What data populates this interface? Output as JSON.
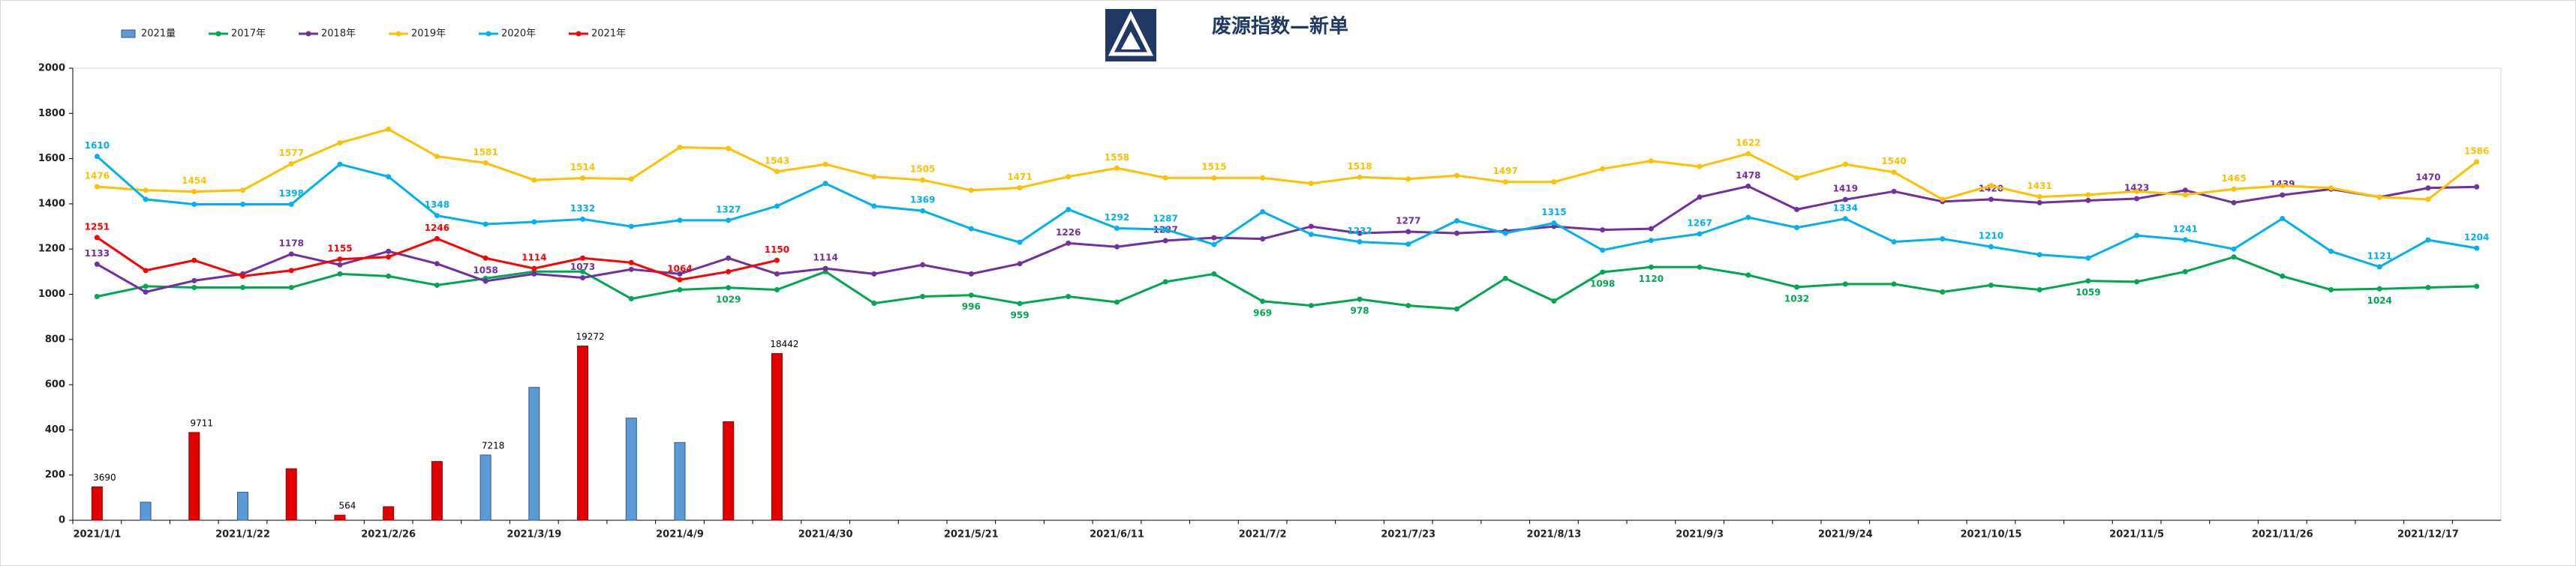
{
  "chart_data": {
    "type": "bar-line",
    "title": "废源指数—新单",
    "categories": [
      "2021/1/1",
      null,
      null,
      "2021/1/22",
      null,
      null,
      "2021/2/26",
      null,
      null,
      "2021/3/19",
      null,
      null,
      "2021/4/9",
      null,
      null,
      "2021/4/30",
      null,
      null,
      "2021/5/21",
      null,
      null,
      "2021/6/11",
      null,
      null,
      "2021/7/2",
      null,
      null,
      "2021/7/23",
      null,
      null,
      "2021/8/13",
      null,
      null,
      "2021/9/3",
      null,
      null,
      "2021/9/24",
      null,
      null,
      "2021/10/15",
      null,
      null,
      "2021/11/5",
      null,
      null,
      "2021/11/26",
      null,
      null,
      "2021/12/17",
      null
    ],
    "ylim": [
      0,
      2000
    ],
    "yticks": [
      0,
      200,
      400,
      600,
      800,
      1000,
      1200,
      1400,
      1600,
      1800,
      2000
    ],
    "y2lim": [
      0,
      50000
    ],
    "grid": false,
    "series": [
      {
        "name": "2021量",
        "type": "bar",
        "axis": "y2",
        "color": "#5b9bd5",
        "colors": [
          "#e00000",
          "#5b9bd5",
          "#e00000",
          "#5b9bd5",
          "#e00000",
          "#e00000",
          "#e00000",
          "#e00000",
          "#5b9bd5",
          "#5b9bd5",
          "#e00000",
          "#5b9bd5",
          "#5b9bd5",
          "#e00000",
          "#e00000",
          null,
          null,
          null,
          null,
          null,
          null,
          null,
          null,
          null,
          null,
          null,
          null,
          null,
          null,
          null,
          null,
          null,
          null,
          null,
          null,
          null,
          null,
          null,
          null,
          null,
          null,
          null,
          null,
          null,
          null,
          null,
          null,
          null,
          null,
          null
        ],
        "values": [
          3690,
          2000,
          9711,
          3100,
          5700,
          564,
          1500,
          6500,
          7218,
          14700,
          19272,
          11300,
          8600,
          10900,
          18442,
          null,
          null,
          null,
          null,
          null,
          null,
          null,
          null,
          null,
          null,
          null,
          null,
          null,
          null,
          null,
          null,
          null,
          null,
          null,
          null,
          null,
          null,
          null,
          null,
          null,
          null,
          null,
          null,
          null,
          null,
          null,
          null,
          null,
          null,
          null
        ],
        "value_labels": [
          "3690",
          null,
          "9711",
          null,
          null,
          "564",
          null,
          null,
          "7218",
          null,
          "19272",
          null,
          null,
          null,
          "18442",
          null,
          null,
          null,
          null,
          null,
          null,
          null,
          null,
          null,
          null,
          null,
          null,
          null,
          null,
          null,
          null,
          null,
          null,
          null,
          null,
          null,
          null,
          null,
          null,
          null,
          null,
          null,
          null,
          null,
          null,
          null,
          null,
          null,
          null,
          null
        ]
      },
      {
        "name": "2017年",
        "type": "line",
        "color": "#00a650",
        "values": [
          990,
          1035,
          1030,
          1030,
          1030,
          1090,
          1080,
          1040,
          1070,
          1100,
          1100,
          980,
          1020,
          1029,
          1020,
          1100,
          960,
          990,
          996,
          959,
          990,
          965,
          1055,
          1090,
          969,
          950,
          978,
          950,
          935,
          1070,
          970,
          1098,
          1120,
          1120,
          1085,
          1032,
          1045,
          1045,
          1010,
          1040,
          1020,
          1059,
          1055,
          1100,
          1165,
          1080,
          1020,
          1024,
          1030,
          1035
        ],
        "value_labels": [
          null,
          null,
          null,
          null,
          null,
          null,
          null,
          null,
          null,
          null,
          null,
          null,
          null,
          "1029",
          null,
          null,
          null,
          null,
          "996",
          "959",
          null,
          null,
          null,
          null,
          "969",
          null,
          "978",
          null,
          null,
          null,
          null,
          "1098",
          "1120",
          null,
          null,
          "1032",
          null,
          null,
          null,
          null,
          null,
          "1059",
          null,
          null,
          null,
          null,
          null,
          "1024",
          null,
          null
        ]
      },
      {
        "name": "2018年",
        "type": "line",
        "color": "#7030a0",
        "values": [
          1133,
          1010,
          1060,
          1090,
          1178,
          1130,
          1190,
          1135,
          1058,
          1090,
          1073,
          1110,
          1090,
          1160,
          1090,
          1114,
          1090,
          1130,
          1090,
          1135,
          1226,
          1210,
          1237,
          1250,
          1245,
          1300,
          1270,
          1277,
          1270,
          1280,
          1300,
          1285,
          1290,
          1430,
          1478,
          1375,
          1419,
          1455,
          1410,
          1420,
          1405,
          1415,
          1423,
          1460,
          1405,
          1439,
          1465,
          1430,
          1470,
          1475
        ],
        "value_labels": [
          "1133",
          null,
          null,
          null,
          "1178",
          null,
          null,
          null,
          "1058",
          null,
          "1073",
          null,
          null,
          null,
          null,
          "1114",
          null,
          null,
          null,
          null,
          "1226",
          null,
          "1237",
          null,
          null,
          null,
          null,
          "1277",
          null,
          null,
          null,
          null,
          null,
          null,
          "1478",
          null,
          "1419",
          null,
          null,
          "1420",
          null,
          null,
          "1423",
          null,
          null,
          "1439",
          null,
          null,
          "1470",
          null
        ]
      },
      {
        "name": "2019年",
        "type": "line",
        "color": "#ffc000",
        "values": [
          1476,
          1460,
          1454,
          1460,
          1577,
          1670,
          1730,
          1610,
          1581,
          1505,
          1514,
          1510,
          1650,
          1645,
          1543,
          1575,
          1520,
          1505,
          1460,
          1471,
          1520,
          1558,
          1515,
          1515,
          1515,
          1490,
          1518,
          1510,
          1525,
          1497,
          1497,
          1555,
          1590,
          1565,
          1622,
          1515,
          1575,
          1540,
          1420,
          1480,
          1431,
          1440,
          1455,
          1440,
          1465,
          1480,
          1470,
          1430,
          1420,
          1586
        ],
        "value_labels": [
          "1476",
          null,
          "1454",
          null,
          "1577",
          null,
          null,
          null,
          "1581",
          null,
          "1514",
          null,
          null,
          null,
          "1543",
          null,
          null,
          "1505",
          null,
          "1471",
          null,
          "1558",
          null,
          "1515",
          null,
          null,
          "1518",
          null,
          null,
          "1497",
          null,
          null,
          null,
          null,
          "1622",
          null,
          null,
          "1540",
          null,
          null,
          "1431",
          null,
          null,
          null,
          "1465",
          null,
          null,
          null,
          null,
          "1586"
        ]
      },
      {
        "name": "2020年",
        "type": "line",
        "color": "#00b0f0",
        "values": [
          1610,
          1420,
          1398,
          1398,
          1398,
          1575,
          1520,
          1348,
          1310,
          1320,
          1332,
          1300,
          1327,
          1327,
          1390,
          1490,
          1390,
          1369,
          1290,
          1230,
          1375,
          1292,
          1287,
          1220,
          1365,
          1265,
          1232,
          1222,
          1325,
          1270,
          1315,
          1195,
          1238,
          1267,
          1340,
          1295,
          1334,
          1232,
          1245,
          1210,
          1175,
          1160,
          1260,
          1241,
          1200,
          1335,
          1190,
          1121,
          1240,
          1204
        ],
        "value_labels": [
          "1610",
          null,
          null,
          null,
          "1398",
          null,
          null,
          "1348",
          null,
          null,
          "1332",
          null,
          null,
          "1327",
          null,
          null,
          null,
          "1369",
          null,
          null,
          null,
          "1292",
          "1287",
          null,
          null,
          null,
          "1232",
          null,
          null,
          null,
          "1315",
          null,
          null,
          "1267",
          null,
          null,
          "1334",
          null,
          null,
          "1210",
          null,
          null,
          null,
          "1241",
          null,
          null,
          null,
          "1121",
          null,
          "1204"
        ]
      },
      {
        "name": "2021年",
        "type": "line",
        "color": "#ff0000",
        "values": [
          1251,
          1105,
          1150,
          1080,
          1105,
          1155,
          1165,
          1246,
          1160,
          1114,
          1160,
          1140,
          1064,
          1100,
          1150,
          null,
          null,
          null,
          null,
          null,
          null,
          null,
          null,
          null,
          null,
          null,
          null,
          null,
          null,
          null,
          null,
          null,
          null,
          null,
          null,
          null,
          null,
          null,
          null,
          null,
          null,
          null,
          null,
          null,
          null,
          null,
          null,
          null,
          null,
          null
        ],
        "value_labels": [
          "1251",
          null,
          null,
          null,
          null,
          "1155",
          null,
          "1246",
          null,
          "1114",
          null,
          null,
          "1064",
          null,
          "1150",
          null,
          null,
          null,
          null,
          null,
          null,
          null,
          null,
          null,
          null,
          null,
          null,
          null,
          null,
          null,
          null,
          null,
          null,
          null,
          null,
          null,
          null,
          null,
          null,
          null,
          null,
          null,
          null,
          null,
          null,
          null,
          null,
          null,
          null,
          null
        ]
      }
    ]
  }
}
